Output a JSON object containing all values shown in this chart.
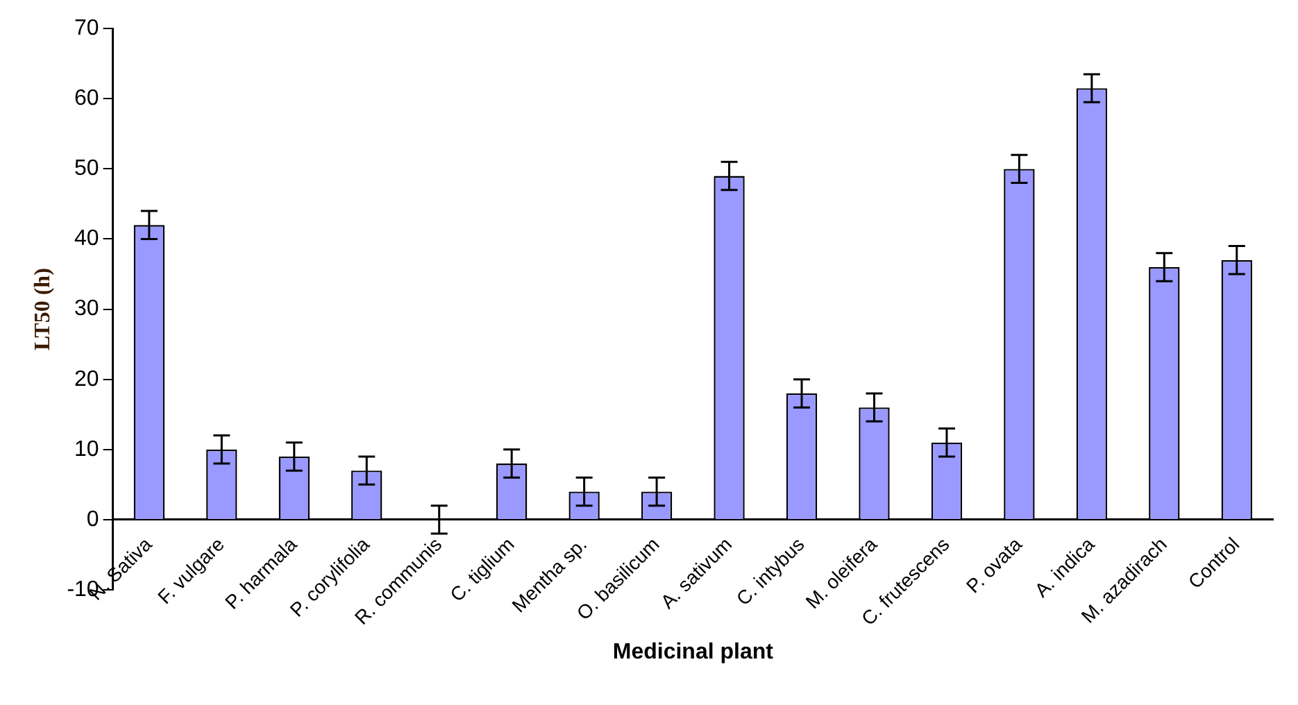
{
  "chart_data": {
    "type": "bar",
    "xlabel": "Medicinal plant",
    "ylabel": "LT50 (h)",
    "categories": [
      "N. Sativa",
      "F. vulgare",
      "P. harmala",
      "P. corylifolia",
      "R. communis",
      "C. tiglium",
      "Mentha sp.",
      "O. basilicum",
      "A. sativum",
      "C. intybus",
      "M. oleifera",
      "C. frutescens",
      "P. ovata",
      "A. indica",
      "M. azadirach",
      "Control"
    ],
    "values": [
      42,
      10,
      9,
      7,
      0,
      8,
      4,
      4,
      49,
      18,
      16,
      11,
      50,
      61.5,
      36,
      37
    ],
    "errors": [
      2,
      2,
      2,
      2,
      2,
      2,
      2,
      2,
      2,
      2,
      2,
      2,
      2,
      2,
      2,
      2
    ],
    "color": "#9999ff",
    "ylim": [
      -10,
      70
    ],
    "yticks": [
      -10,
      0,
      10,
      20,
      30,
      40,
      50,
      60,
      70
    ],
    "grid": false,
    "legend": false
  }
}
